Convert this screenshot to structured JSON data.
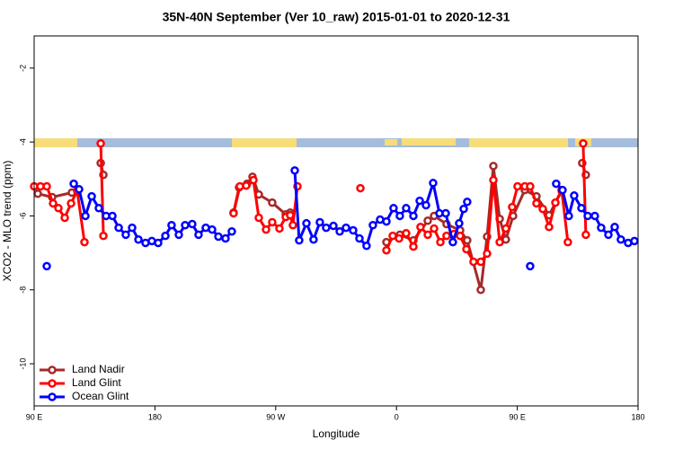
{
  "chart_data": {
    "type": "line",
    "title": "35N-40N September (Ver 10_raw)   2015-01-01 to 2020-12-31",
    "x_label": "Longitude",
    "y_label": "XCO2 - MLO trend (ppm)",
    "xlim": [
      90,
      540
    ],
    "ylim": [
      -11.14,
      -1.13
    ],
    "xticks": [
      {
        "value": 90,
        "label": "90 E"
      },
      {
        "value": 180,
        "label": "180"
      },
      {
        "value": 270,
        "label": "90 W"
      },
      {
        "value": 360,
        "label": "0"
      },
      {
        "value": 450,
        "label": "90 E"
      },
      {
        "value": 540,
        "label": "180"
      }
    ],
    "yticks": [
      -2,
      -4,
      -6,
      -8,
      -10
    ],
    "legend": "bottom-left",
    "series": [
      {
        "name": "Land Nadir",
        "color": "#a52a2a",
        "x": [
          92.7,
          103.4,
          118.1,
          null,
          139.6,
          141.6,
          null,
          238.6,
          242.7,
          248.7,
          252.7,
          257.4,
          267.4,
          277.5,
          280.8,
          null,
          352.5,
          362.5,
          372.6,
          383.3,
          388.0,
          397.3,
          407.4,
          412.7,
          422.8,
          427.5,
          432.2,
          436.9,
          441.5,
          446.9,
          455.6,
          464.3,
          473.7,
          483.1,
          null,
          498.4,
          501.1
        ],
        "values": [
          -5.4,
          -5.49,
          -5.37,
          null,
          -4.57,
          -4.89,
          null,
          -5.91,
          -5.23,
          -5.13,
          -4.94,
          -5.42,
          -5.64,
          -5.96,
          -5.91,
          null,
          -6.71,
          -6.51,
          -6.66,
          -6.13,
          -6.0,
          -6.22,
          -6.39,
          -6.66,
          -8.0,
          -6.56,
          -4.65,
          -6.08,
          -6.64,
          -6.0,
          -5.3,
          -5.47,
          -5.98,
          -5.32,
          null,
          -4.57,
          -4.89
        ]
      },
      {
        "name": "Land Glint",
        "color": "#ff0000",
        "x": [
          90.0,
          94.7,
          99.4,
          104.1,
          108.1,
          112.8,
          117.5,
          122.1,
          127.5,
          null,
          139.6,
          141.6,
          null,
          238.6,
          243.3,
          248.0,
          253.4,
          257.4,
          262.8,
          267.4,
          272.8,
          277.5,
          280.8,
          282.8,
          286.2,
          null,
          333.1,
          null,
          352.5,
          357.2,
          361.9,
          367.2,
          372.6,
          377.9,
          383.3,
          388.0,
          392.7,
          397.3,
          402.7,
          407.4,
          412.1,
          417.4,
          422.8,
          427.5,
          432.2,
          436.9,
          441.5,
          446.2,
          450.2,
          455.6,
          459.6,
          464.3,
          469.0,
          473.7,
          478.4,
          483.1,
          487.7,
          null,
          499.1,
          501.1
        ],
        "values": [
          -5.2,
          -5.2,
          -5.2,
          -5.66,
          -5.79,
          -6.05,
          -5.66,
          -5.32,
          -6.71,
          null,
          -4.04,
          -6.54,
          null,
          -5.93,
          -5.2,
          -5.18,
          -5.03,
          -6.05,
          -6.37,
          -6.17,
          -6.34,
          -6.03,
          -5.98,
          -6.25,
          -5.2,
          null,
          -5.25,
          null,
          -6.93,
          -6.54,
          -6.61,
          -6.47,
          -6.83,
          -6.3,
          -6.51,
          -6.34,
          -6.71,
          -6.54,
          -6.49,
          -6.54,
          -6.9,
          -7.24,
          -7.24,
          -7.02,
          -5.03,
          -6.71,
          -6.34,
          -5.76,
          -5.2,
          -5.2,
          -5.2,
          -5.66,
          -5.81,
          -6.3,
          -5.64,
          -5.3,
          -6.71,
          null,
          -4.04,
          -6.51
        ]
      },
      {
        "name": "Ocean Glint",
        "color": "#0000ff",
        "x": [
          99.4,
          null,
          119.5,
          123.5,
          128.2,
          132.9,
          138.2,
          143.6,
          148.3,
          153.0,
          158.3,
          163.0,
          167.7,
          173.0,
          177.7,
          182.4,
          187.8,
          192.4,
          197.8,
          202.5,
          207.8,
          212.5,
          217.9,
          222.6,
          227.3,
          232.6,
          237.3,
          null,
          284.2,
          287.5,
          292.9,
          298.2,
          302.9,
          307.6,
          313.0,
          317.7,
          322.4,
          327.7,
          332.4,
          337.7,
          342.4,
          347.8,
          352.5,
          357.8,
          362.5,
          367.2,
          372.6,
          377.3,
          382.0,
          387.3,
          392.0,
          396.7,
          402.0,
          406.7,
          410.1,
          412.7,
          null,
          459.6,
          null,
          479.0,
          483.7,
          488.4,
          492.4,
          497.8,
          502.5,
          507.8,
          512.5,
          517.9,
          522.6,
          527.2,
          532.6,
          537.3
        ],
        "values": [
          -7.36,
          null,
          -5.13,
          -5.28,
          -6.0,
          -5.47,
          -5.79,
          -6.0,
          -6.0,
          -6.32,
          -6.51,
          -6.32,
          -6.64,
          -6.73,
          -6.68,
          -6.73,
          -6.54,
          -6.25,
          -6.51,
          -6.25,
          -6.22,
          -6.51,
          -6.32,
          -6.37,
          -6.56,
          -6.61,
          -6.42,
          null,
          -4.77,
          -6.66,
          -6.2,
          -6.64,
          -6.17,
          -6.32,
          -6.27,
          -6.42,
          -6.32,
          -6.39,
          -6.61,
          -6.81,
          -6.25,
          -6.1,
          -6.15,
          -5.79,
          -6.0,
          -5.79,
          -6.0,
          -5.59,
          -5.71,
          -5.11,
          -5.93,
          -5.93,
          -6.71,
          -6.2,
          -5.81,
          -5.62,
          null,
          -7.36,
          null,
          -5.13,
          -5.3,
          -6.0,
          -5.45,
          -5.79,
          -6.0,
          -6.0,
          -6.32,
          -6.51,
          -6.3,
          -6.64,
          -6.73,
          -6.68
        ]
      }
    ]
  }
}
